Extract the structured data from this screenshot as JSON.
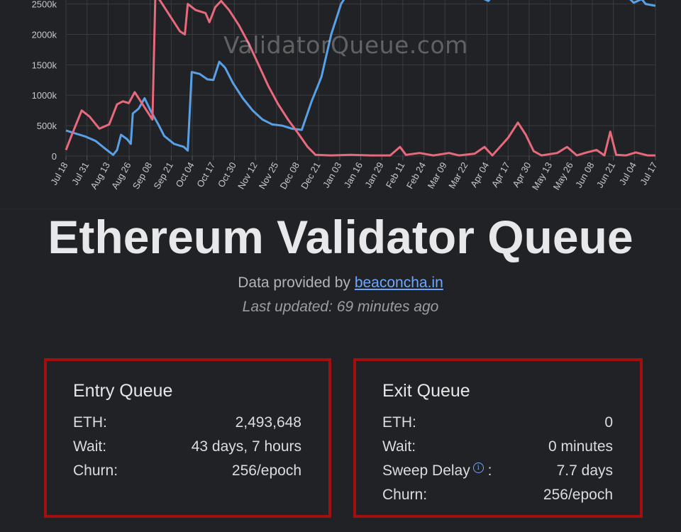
{
  "watermark": "ValidatorQueue.com",
  "page_title": "Ethereum Validator Queue",
  "provided_prefix": "Data provided by ",
  "provided_link": "beaconcha.in",
  "last_updated": "Last updated: 69 minutes ago",
  "entry": {
    "title": "Entry Queue",
    "rows": [
      {
        "label": "ETH:",
        "value": "2,493,648"
      },
      {
        "label": "Wait:",
        "value": "43 days, 7 hours"
      },
      {
        "label": "Churn:",
        "value": "256/epoch"
      }
    ]
  },
  "exit": {
    "title": "Exit Queue",
    "rows": [
      {
        "label": "ETH:",
        "value": "0"
      },
      {
        "label": "Wait:",
        "value": "0 minutes"
      },
      {
        "label": "Sweep Delay",
        "value": "7.7 days",
        "suffix": ":"
      },
      {
        "label": "Churn:",
        "value": "256/epoch"
      }
    ],
    "info_icon": "info-circle-icon"
  },
  "chart_data": {
    "type": "line",
    "ylim": [
      0,
      2600000
    ],
    "y_ticks": [
      0,
      500000,
      1000000,
      1500000,
      2000000,
      2500000
    ],
    "y_tick_labels": [
      "0",
      "500k",
      "1000k",
      "1500k",
      "2000k",
      "2500k"
    ],
    "x_tick_labels": [
      "Jul 18",
      "Jul 31",
      "Aug 13",
      "Aug 26",
      "Sep 08",
      "Sep 21",
      "Oct 04",
      "Oct 17",
      "Oct 30",
      "Nov 12",
      "Nov 25",
      "Dec 08",
      "Dec 21",
      "Jan 03",
      "Jan 16",
      "Jan 29",
      "Feb 11",
      "Feb 24",
      "Mar 09",
      "Mar 22",
      "Apr 04",
      "Apr 17",
      "Apr 30",
      "May 13",
      "May 26",
      "Jun 08",
      "Jun 21",
      "Jul 04",
      "Jul 17"
    ],
    "grid": true,
    "series": [
      {
        "color": "#5aa0e6",
        "values": [
          [
            0,
            420000
          ],
          [
            1,
            320000
          ],
          [
            1.5,
            250000
          ],
          [
            2,
            120000
          ],
          [
            2.4,
            20000
          ],
          [
            2.6,
            100000
          ],
          [
            2.8,
            350000
          ],
          [
            3.1,
            280000
          ],
          [
            3.3,
            200000
          ],
          [
            3.4,
            700000
          ],
          [
            3.7,
            780000
          ],
          [
            4.0,
            950000
          ],
          [
            4.3,
            750000
          ],
          [
            4.7,
            520000
          ],
          [
            5.0,
            330000
          ],
          [
            5.5,
            200000
          ],
          [
            6.0,
            150000
          ],
          [
            6.2,
            90000
          ],
          [
            6.4,
            1380000
          ],
          [
            6.8,
            1350000
          ],
          [
            7.2,
            1260000
          ],
          [
            7.5,
            1250000
          ],
          [
            7.8,
            1550000
          ],
          [
            8.1,
            1450000
          ],
          [
            8.5,
            1200000
          ],
          [
            9.0,
            950000
          ],
          [
            9.5,
            750000
          ],
          [
            10.0,
            600000
          ],
          [
            10.5,
            520000
          ],
          [
            11.0,
            500000
          ],
          [
            11.5,
            450000
          ],
          [
            12.0,
            430000
          ],
          [
            12.5,
            900000
          ],
          [
            13.0,
            1300000
          ],
          [
            13.5,
            2000000
          ],
          [
            14.0,
            2500000
          ],
          [
            14.3,
            2650000
          ]
        ],
        "note_tail": "continues off top of chart, returning around Apr 17 near 2600k and ending Jul 17 at 2470k"
      },
      {
        "color": "#e8697c",
        "values": [
          [
            0,
            100000
          ],
          [
            0.3,
            350000
          ],
          [
            0.8,
            750000
          ],
          [
            1.2,
            650000
          ],
          [
            1.7,
            450000
          ],
          [
            2.2,
            520000
          ],
          [
            2.6,
            850000
          ],
          [
            2.9,
            900000
          ],
          [
            3.2,
            870000
          ],
          [
            3.5,
            1050000
          ],
          [
            3.8,
            900000
          ],
          [
            4.1,
            750000
          ],
          [
            4.4,
            600000
          ],
          [
            4.55,
            2650000
          ],
          [
            4.8,
            2550000
          ],
          [
            5.3,
            2300000
          ],
          [
            5.8,
            2050000
          ],
          [
            6.05,
            2000000
          ],
          [
            6.2,
            2500000
          ],
          [
            6.6,
            2400000
          ],
          [
            7.1,
            2350000
          ],
          [
            7.3,
            2200000
          ],
          [
            7.6,
            2450000
          ],
          [
            7.9,
            2550000
          ],
          [
            8.3,
            2400000
          ],
          [
            8.8,
            2150000
          ],
          [
            9.3,
            1850000
          ],
          [
            9.8,
            1500000
          ],
          [
            10.3,
            1150000
          ],
          [
            10.8,
            850000
          ],
          [
            11.3,
            600000
          ],
          [
            11.8,
            380000
          ],
          [
            12.3,
            150000
          ],
          [
            12.7,
            20000
          ],
          [
            13.5,
            10000
          ],
          [
            14.5,
            20000
          ],
          [
            15.5,
            10000
          ],
          [
            16.5,
            10000
          ],
          [
            17.0,
            150000
          ],
          [
            17.3,
            20000
          ],
          [
            18.0,
            50000
          ],
          [
            18.7,
            10000
          ],
          [
            19.5,
            50000
          ],
          [
            20.0,
            10000
          ],
          [
            20.8,
            40000
          ],
          [
            21.3,
            150000
          ],
          [
            21.7,
            10000
          ],
          [
            22.5,
            300000
          ],
          [
            23.0,
            550000
          ],
          [
            23.4,
            350000
          ],
          [
            23.8,
            80000
          ],
          [
            24.2,
            10000
          ],
          [
            25.0,
            50000
          ],
          [
            25.5,
            150000
          ],
          [
            26.0,
            10000
          ],
          [
            26.5,
            60000
          ],
          [
            27.0,
            100000
          ],
          [
            27.4,
            10000
          ],
          [
            27.7,
            400000
          ],
          [
            28.0,
            20000
          ],
          [
            28.5,
            10000
          ],
          [
            29.0,
            60000
          ],
          [
            29.6,
            10000
          ],
          [
            30.0,
            10000
          ]
        ]
      }
    ]
  }
}
